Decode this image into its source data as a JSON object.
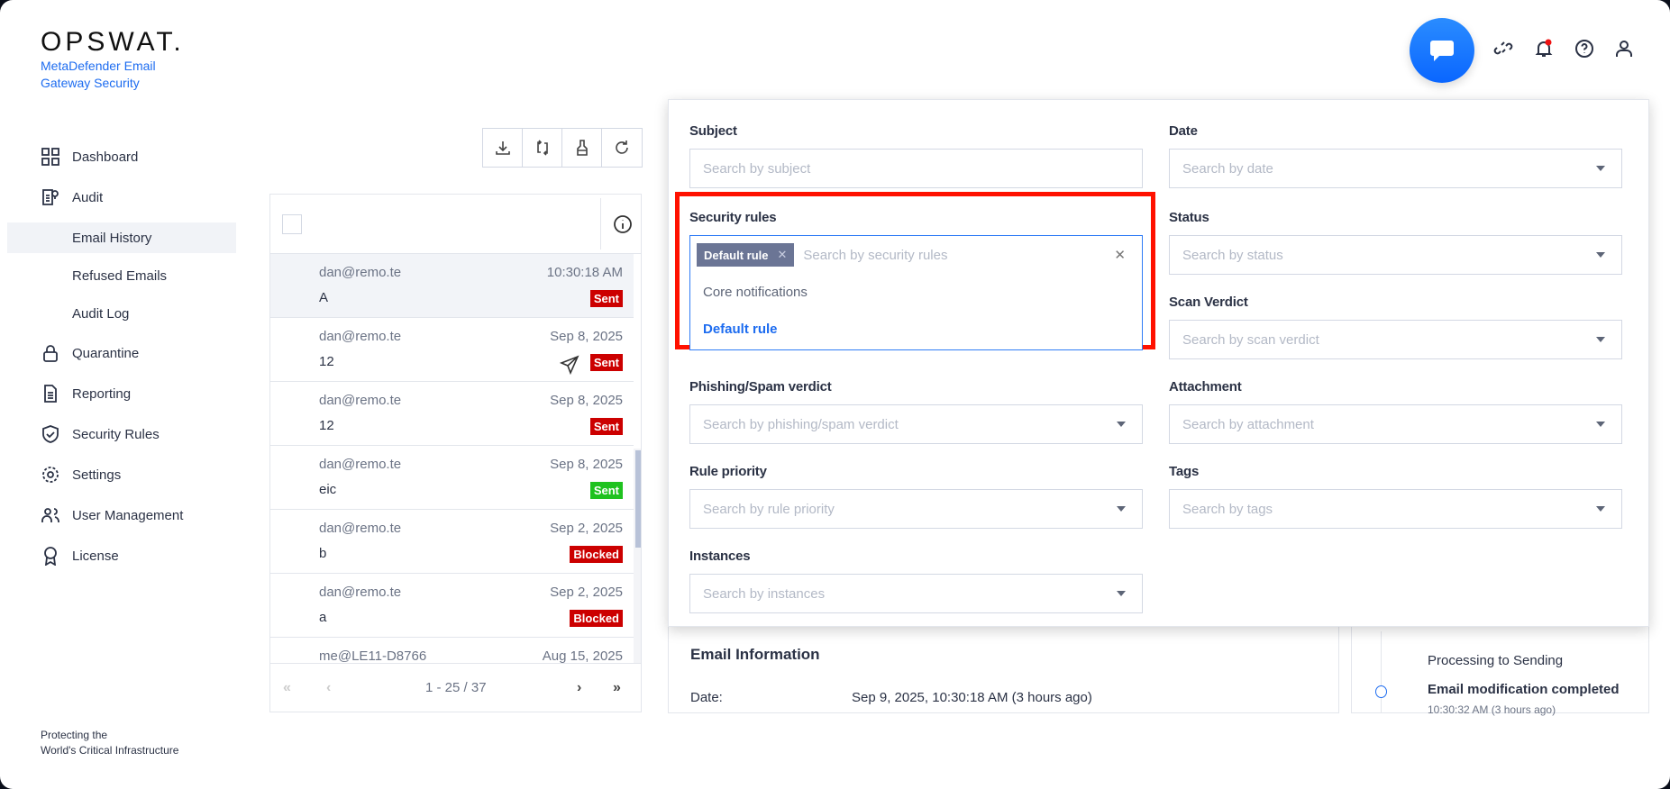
{
  "brand": {
    "logo": "OPSWAT.",
    "product": "MetaDefender Email Gateway Security",
    "tagline_1": "Protecting the",
    "tagline_2": "World's Critical Infrastructure"
  },
  "sidebar": {
    "items": [
      {
        "label": "Dashboard",
        "icon": "grid-icon"
      },
      {
        "label": "Audit",
        "icon": "audit-icon"
      },
      {
        "label": "Email History",
        "sub": true,
        "active": true
      },
      {
        "label": "Refused Emails",
        "sub": true
      },
      {
        "label": "Audit Log",
        "sub": true
      },
      {
        "label": "Quarantine",
        "icon": "lock-icon"
      },
      {
        "label": "Reporting",
        "icon": "document-icon"
      },
      {
        "label": "Security Rules",
        "icon": "shield-check-icon"
      },
      {
        "label": "Settings",
        "icon": "gear-icon"
      },
      {
        "label": "User Management",
        "icon": "users-icon"
      },
      {
        "label": "License",
        "icon": "award-icon"
      }
    ]
  },
  "toolbar": {
    "icons": [
      "download-icon",
      "sync-icon",
      "broom-icon",
      "refresh-icon"
    ]
  },
  "emails": [
    {
      "from": "dan@remo.te",
      "date": "10:30:18 AM",
      "subject": "A",
      "status": "Sent",
      "color": "#cc0000",
      "sent_icon": false
    },
    {
      "from": "dan@remo.te",
      "date": "Sep 8, 2025",
      "subject": "12",
      "status": "Sent",
      "color": "#cc0000",
      "sent_icon": true
    },
    {
      "from": "dan@remo.te",
      "date": "Sep 8, 2025",
      "subject": "12",
      "status": "Sent",
      "color": "#cc0000",
      "sent_icon": false
    },
    {
      "from": "dan@remo.te",
      "date": "Sep 8, 2025",
      "subject": "eic",
      "status": "Sent",
      "color": "#1fc21f",
      "sent_icon": false
    },
    {
      "from": "dan@remo.te",
      "date": "Sep 2, 2025",
      "subject": "b",
      "status": "Blocked",
      "color": "#cc0000",
      "sent_icon": false
    },
    {
      "from": "dan@remo.te",
      "date": "Sep 2, 2025",
      "subject": "a",
      "status": "Blocked",
      "color": "#cc0000",
      "sent_icon": false
    },
    {
      "from": "me@LE11-D8766",
      "date": "Aug 15, 2025",
      "subject": "",
      "status": "",
      "color": "#cc0000",
      "sent_icon": false
    }
  ],
  "pagination": {
    "range": "1 - 25 / 37"
  },
  "filters": {
    "subject": {
      "label": "Subject",
      "placeholder": "Search by subject"
    },
    "date": {
      "label": "Date",
      "placeholder": "Search by date"
    },
    "security_rules": {
      "label": "Security rules",
      "placeholder": "Search by security rules",
      "chip": "Default rule",
      "options": [
        "Core notifications",
        "Default rule"
      ],
      "selected": "Default rule"
    },
    "status": {
      "label": "Status",
      "placeholder": "Search by status"
    },
    "scan_verdict": {
      "label": "Scan Verdict",
      "placeholder": "Search by scan verdict"
    },
    "phishing": {
      "label": "Phishing/Spam verdict",
      "placeholder": "Search by phishing/spam verdict"
    },
    "attachment": {
      "label": "Attachment",
      "placeholder": "Search by attachment"
    },
    "rule_priority": {
      "label": "Rule priority",
      "placeholder": "Search by rule priority"
    },
    "tags": {
      "label": "Tags",
      "placeholder": "Search by tags"
    },
    "instances": {
      "label": "Instances",
      "placeholder": "Search by instances"
    }
  },
  "details": {
    "section_title": "Email Information",
    "date_label": "Date:",
    "date_value": "Sep 9, 2025, 10:30:18 AM (3 hours ago)"
  },
  "timeline": {
    "prev": "Processing to Sending",
    "event": "Email modification completed",
    "event_time": "10:30:32 AM (3 hours ago)"
  },
  "colors": {
    "accent": "#1d6cf0",
    "highlight": "#ff1100",
    "chip": "#6b7595"
  }
}
